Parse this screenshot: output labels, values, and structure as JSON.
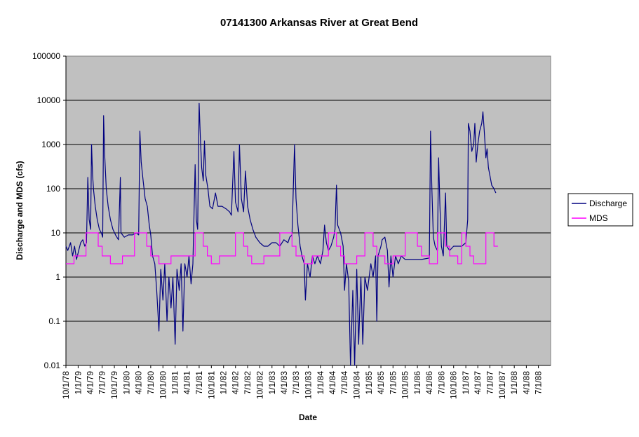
{
  "chart_data": {
    "type": "line",
    "title": "07141300 Arkansas River at Great Bend",
    "xlabel": "Date",
    "ylabel": "Discharge and MDS (cfs)",
    "y_scale": "log",
    "ylim": [
      0.01,
      100000
    ],
    "y_ticks": [
      "0.01",
      "0.1",
      "1",
      "10",
      "100",
      "1000",
      "10000",
      "100000"
    ],
    "xlim": [
      "1978-10-01",
      "1988-10-01"
    ],
    "x_ticks": [
      "10/1/78",
      "1/1/79",
      "4/1/79",
      "7/1/79",
      "10/1/79",
      "1/1/80",
      "4/1/80",
      "7/1/80",
      "10/1/80",
      "1/1/81",
      "4/1/81",
      "7/1/81",
      "10/1/81",
      "1/1/82",
      "4/1/82",
      "7/1/82",
      "10/1/82",
      "1/1/83",
      "4/1/83",
      "7/1/83",
      "10/1/83",
      "1/1/84",
      "4/1/84",
      "7/1/84",
      "10/1/84",
      "1/1/85",
      "4/1/85",
      "7/1/85",
      "10/1/85",
      "1/1/86",
      "4/1/86",
      "7/1/86",
      "10/1/86",
      "1/1/87",
      "4/1/87",
      "7/1/87",
      "10/1/87",
      "1/1/88",
      "4/1/88",
      "7/1/88"
    ],
    "grid": "horizontal",
    "plot_background": "#c0c0c0",
    "legend_position": "right",
    "series": [
      {
        "name": "Discharge",
        "color": "#000080",
        "points": [
          [
            "1978-10-01",
            5
          ],
          [
            "1978-10-15",
            4
          ],
          [
            "1978-11-05",
            6
          ],
          [
            "1978-11-20",
            3
          ],
          [
            "1978-12-05",
            5
          ],
          [
            "1978-12-20",
            2.5
          ],
          [
            "1979-01-05",
            4
          ],
          [
            "1979-01-20",
            6
          ],
          [
            "1979-02-05",
            7
          ],
          [
            "1979-02-20",
            5
          ],
          [
            "1979-03-05",
            6
          ],
          [
            "1979-03-15",
            180
          ],
          [
            "1979-03-25",
            20
          ],
          [
            "1979-04-05",
            12
          ],
          [
            "1979-04-12",
            1000
          ],
          [
            "1979-04-20",
            200
          ],
          [
            "1979-04-28",
            90
          ],
          [
            "1979-05-10",
            40
          ],
          [
            "1979-05-25",
            20
          ],
          [
            "1979-06-10",
            12
          ],
          [
            "1979-06-25",
            10
          ],
          [
            "1979-07-05",
            8
          ],
          [
            "1979-07-12",
            4500
          ],
          [
            "1979-07-20",
            600
          ],
          [
            "1979-08-01",
            100
          ],
          [
            "1979-08-15",
            40
          ],
          [
            "1979-09-01",
            20
          ],
          [
            "1979-09-20",
            12
          ],
          [
            "1979-10-10",
            9
          ],
          [
            "1979-11-01",
            7
          ],
          [
            "1979-11-15",
            180
          ],
          [
            "1979-11-20",
            10
          ],
          [
            "1979-12-15",
            8
          ],
          [
            "1980-01-15",
            9
          ],
          [
            "1980-02-15",
            9
          ],
          [
            "1980-03-15",
            10
          ],
          [
            "1980-04-01",
            9
          ],
          [
            "1980-04-10",
            2000
          ],
          [
            "1980-04-20",
            400
          ],
          [
            "1980-05-05",
            150
          ],
          [
            "1980-05-20",
            60
          ],
          [
            "1980-06-05",
            40
          ],
          [
            "1980-06-20",
            15
          ],
          [
            "1980-07-01",
            9
          ],
          [
            "1980-07-15",
            3
          ],
          [
            "1980-08-01",
            2
          ],
          [
            "1980-08-15",
            0.5
          ],
          [
            "1980-09-01",
            0.06
          ],
          [
            "1980-09-15",
            1.5
          ],
          [
            "1980-10-01",
            0.3
          ],
          [
            "1980-10-15",
            2
          ],
          [
            "1980-11-01",
            0.1
          ],
          [
            "1980-11-15",
            1
          ],
          [
            "1980-12-01",
            0.2
          ],
          [
            "1980-12-15",
            1
          ],
          [
            "1981-01-01",
            0.03
          ],
          [
            "1981-01-15",
            1.5
          ],
          [
            "1981-02-01",
            0.5
          ],
          [
            "1981-02-15",
            2
          ],
          [
            "1981-03-01",
            0.06
          ],
          [
            "1981-03-15",
            2
          ],
          [
            "1981-04-01",
            1
          ],
          [
            "1981-04-15",
            3
          ],
          [
            "1981-05-01",
            0.7
          ],
          [
            "1981-05-15",
            2
          ],
          [
            "1981-06-01",
            350
          ],
          [
            "1981-06-10",
            20
          ],
          [
            "1981-06-20",
            12
          ],
          [
            "1981-07-01",
            8500
          ],
          [
            "1981-07-10",
            1500
          ],
          [
            "1981-07-20",
            300
          ],
          [
            "1981-08-01",
            150
          ],
          [
            "1981-08-10",
            1200
          ],
          [
            "1981-08-20",
            200
          ],
          [
            "1981-09-05",
            100
          ],
          [
            "1981-09-20",
            40
          ],
          [
            "1981-10-10",
            35
          ],
          [
            "1981-11-01",
            80
          ],
          [
            "1981-11-20",
            40
          ],
          [
            "1981-12-20",
            40
          ],
          [
            "1982-01-20",
            35
          ],
          [
            "1982-02-15",
            30
          ],
          [
            "1982-03-01",
            25
          ],
          [
            "1982-03-20",
            700
          ],
          [
            "1982-04-01",
            50
          ],
          [
            "1982-04-20",
            30
          ],
          [
            "1982-05-01",
            1000
          ],
          [
            "1982-05-15",
            60
          ],
          [
            "1982-06-01",
            30
          ],
          [
            "1982-06-15",
            250
          ],
          [
            "1982-07-01",
            40
          ],
          [
            "1982-07-20",
            20
          ],
          [
            "1982-08-10",
            12
          ],
          [
            "1982-09-01",
            8
          ],
          [
            "1982-10-01",
            6
          ],
          [
            "1982-11-01",
            5
          ],
          [
            "1982-12-01",
            5
          ],
          [
            "1983-01-01",
            6
          ],
          [
            "1983-02-01",
            6
          ],
          [
            "1983-03-01",
            5
          ],
          [
            "1983-04-01",
            7
          ],
          [
            "1983-05-01",
            6
          ],
          [
            "1983-05-15",
            8
          ],
          [
            "1983-06-01",
            9
          ],
          [
            "1983-06-20",
            1000
          ],
          [
            "1983-07-01",
            60
          ],
          [
            "1983-07-15",
            15
          ],
          [
            "1983-08-01",
            5
          ],
          [
            "1983-08-15",
            3
          ],
          [
            "1983-09-01",
            2
          ],
          [
            "1983-09-10",
            0.3
          ],
          [
            "1983-09-25",
            2
          ],
          [
            "1983-10-15",
            1
          ],
          [
            "1983-11-01",
            3
          ],
          [
            "1983-11-20",
            2
          ],
          [
            "1983-12-10",
            3
          ],
          [
            "1984-01-01",
            2
          ],
          [
            "1984-01-20",
            4
          ],
          [
            "1984-02-01",
            15
          ],
          [
            "1984-02-15",
            6
          ],
          [
            "1984-03-01",
            4
          ],
          [
            "1984-03-20",
            5
          ],
          [
            "1984-04-10",
            8
          ],
          [
            "1984-04-20",
            12
          ],
          [
            "1984-05-01",
            120
          ],
          [
            "1984-05-10",
            15
          ],
          [
            "1984-06-01",
            10
          ],
          [
            "1984-06-20",
            5
          ],
          [
            "1984-07-01",
            0.5
          ],
          [
            "1984-07-15",
            2
          ],
          [
            "1984-08-01",
            0.8
          ],
          [
            "1984-08-15",
            0.01
          ],
          [
            "1984-09-01",
            0.5
          ],
          [
            "1984-09-15",
            0.01
          ],
          [
            "1984-10-01",
            1.5
          ],
          [
            "1984-10-15",
            0.03
          ],
          [
            "1984-11-01",
            1
          ],
          [
            "1984-11-15",
            0.03
          ],
          [
            "1984-12-01",
            1
          ],
          [
            "1984-12-20",
            0.5
          ],
          [
            "1985-01-15",
            2
          ],
          [
            "1985-02-01",
            1
          ],
          [
            "1985-02-20",
            3
          ],
          [
            "1985-03-01",
            0.1
          ],
          [
            "1985-03-10",
            3
          ],
          [
            "1985-04-01",
            5
          ],
          [
            "1985-04-10",
            7
          ],
          [
            "1985-05-01",
            8
          ],
          [
            "1985-05-20",
            4
          ],
          [
            "1985-06-01",
            0.6
          ],
          [
            "1985-06-15",
            3
          ],
          [
            "1985-07-01",
            1
          ],
          [
            "1985-07-20",
            3
          ],
          [
            "1985-08-10",
            2
          ],
          [
            "1985-09-01",
            3
          ],
          [
            "1985-10-01",
            2.5
          ],
          [
            "1985-11-01",
            2.5
          ],
          [
            "1985-12-01",
            2.5
          ],
          [
            "1986-01-01",
            2.5
          ],
          [
            "1986-02-01",
            2.5
          ],
          [
            "1986-03-01",
            2.6
          ],
          [
            "1986-04-01",
            2.7
          ],
          [
            "1986-04-10",
            2000
          ],
          [
            "1986-04-20",
            100
          ],
          [
            "1986-05-01",
            8
          ],
          [
            "1986-05-15",
            5
          ],
          [
            "1986-06-01",
            4
          ],
          [
            "1986-06-10",
            500
          ],
          [
            "1986-06-20",
            40
          ],
          [
            "1986-07-01",
            5
          ],
          [
            "1986-07-15",
            3
          ],
          [
            "1986-08-01",
            80
          ],
          [
            "1986-08-10",
            5
          ],
          [
            "1986-09-01",
            4
          ],
          [
            "1986-10-01",
            5
          ],
          [
            "1986-11-01",
            5
          ],
          [
            "1986-12-01",
            5
          ],
          [
            "1987-01-01",
            6
          ],
          [
            "1987-01-15",
            20
          ],
          [
            "1987-01-20",
            3000
          ],
          [
            "1987-02-01",
            2000
          ],
          [
            "1987-02-15",
            700
          ],
          [
            "1987-03-01",
            1000
          ],
          [
            "1987-03-10",
            3000
          ],
          [
            "1987-03-20",
            400
          ],
          [
            "1987-04-01",
            1000
          ],
          [
            "1987-04-15",
            2000
          ],
          [
            "1987-05-01",
            3000
          ],
          [
            "1987-05-10",
            5500
          ],
          [
            "1987-05-20",
            2000
          ],
          [
            "1987-06-01",
            500
          ],
          [
            "1987-06-10",
            800
          ],
          [
            "1987-06-20",
            300
          ],
          [
            "1987-07-01",
            200
          ],
          [
            "1987-07-15",
            120
          ],
          [
            "1987-08-01",
            100
          ],
          [
            "1987-08-15",
            80
          ]
        ]
      },
      {
        "name": "MDS",
        "color": "#ff00ff",
        "steps": [
          [
            "1978-10-01",
            2
          ],
          [
            "1978-12-01",
            3
          ],
          [
            "1979-03-01",
            10
          ],
          [
            "1979-06-01",
            5
          ],
          [
            "1979-07-01",
            3
          ],
          [
            "1979-09-01",
            2
          ],
          [
            "1979-12-01",
            3
          ],
          [
            "1980-03-01",
            10
          ],
          [
            "1980-06-01",
            5
          ],
          [
            "1980-07-01",
            3
          ],
          [
            "1980-09-01",
            2
          ],
          [
            "1980-12-01",
            3
          ],
          [
            "1981-03-01",
            3
          ],
          [
            "1981-06-01",
            10
          ],
          [
            "1981-08-01",
            5
          ],
          [
            "1981-09-01",
            3
          ],
          [
            "1981-10-01",
            2
          ],
          [
            "1981-12-01",
            3
          ],
          [
            "1982-03-01",
            3
          ],
          [
            "1982-04-01",
            10
          ],
          [
            "1982-06-01",
            5
          ],
          [
            "1982-07-01",
            3
          ],
          [
            "1982-08-01",
            2
          ],
          [
            "1982-11-01",
            3
          ],
          [
            "1983-03-01",
            10
          ],
          [
            "1983-06-01",
            5
          ],
          [
            "1983-07-01",
            3
          ],
          [
            "1983-09-01",
            2
          ],
          [
            "1983-11-01",
            3
          ],
          [
            "1984-03-01",
            10
          ],
          [
            "1984-05-01",
            5
          ],
          [
            "1984-06-01",
            3
          ],
          [
            "1984-07-01",
            2
          ],
          [
            "1984-10-01",
            3
          ],
          [
            "1984-12-01",
            10
          ],
          [
            "1985-02-01",
            5
          ],
          [
            "1985-03-01",
            3
          ],
          [
            "1985-05-01",
            2
          ],
          [
            "1985-07-01",
            3
          ],
          [
            "1985-10-01",
            10
          ],
          [
            "1986-01-01",
            5
          ],
          [
            "1986-02-01",
            3
          ],
          [
            "1986-04-01",
            2
          ],
          [
            "1986-06-01",
            10
          ],
          [
            "1986-08-01",
            5
          ],
          [
            "1986-09-01",
            3
          ],
          [
            "1986-11-01",
            2
          ],
          [
            "1986-12-01",
            10
          ],
          [
            "1987-01-01",
            5
          ],
          [
            "1987-02-01",
            3
          ],
          [
            "1987-03-01",
            2
          ],
          [
            "1987-06-01",
            10
          ],
          [
            "1987-08-01",
            5
          ],
          [
            "1987-08-31",
            5
          ]
        ]
      }
    ]
  }
}
